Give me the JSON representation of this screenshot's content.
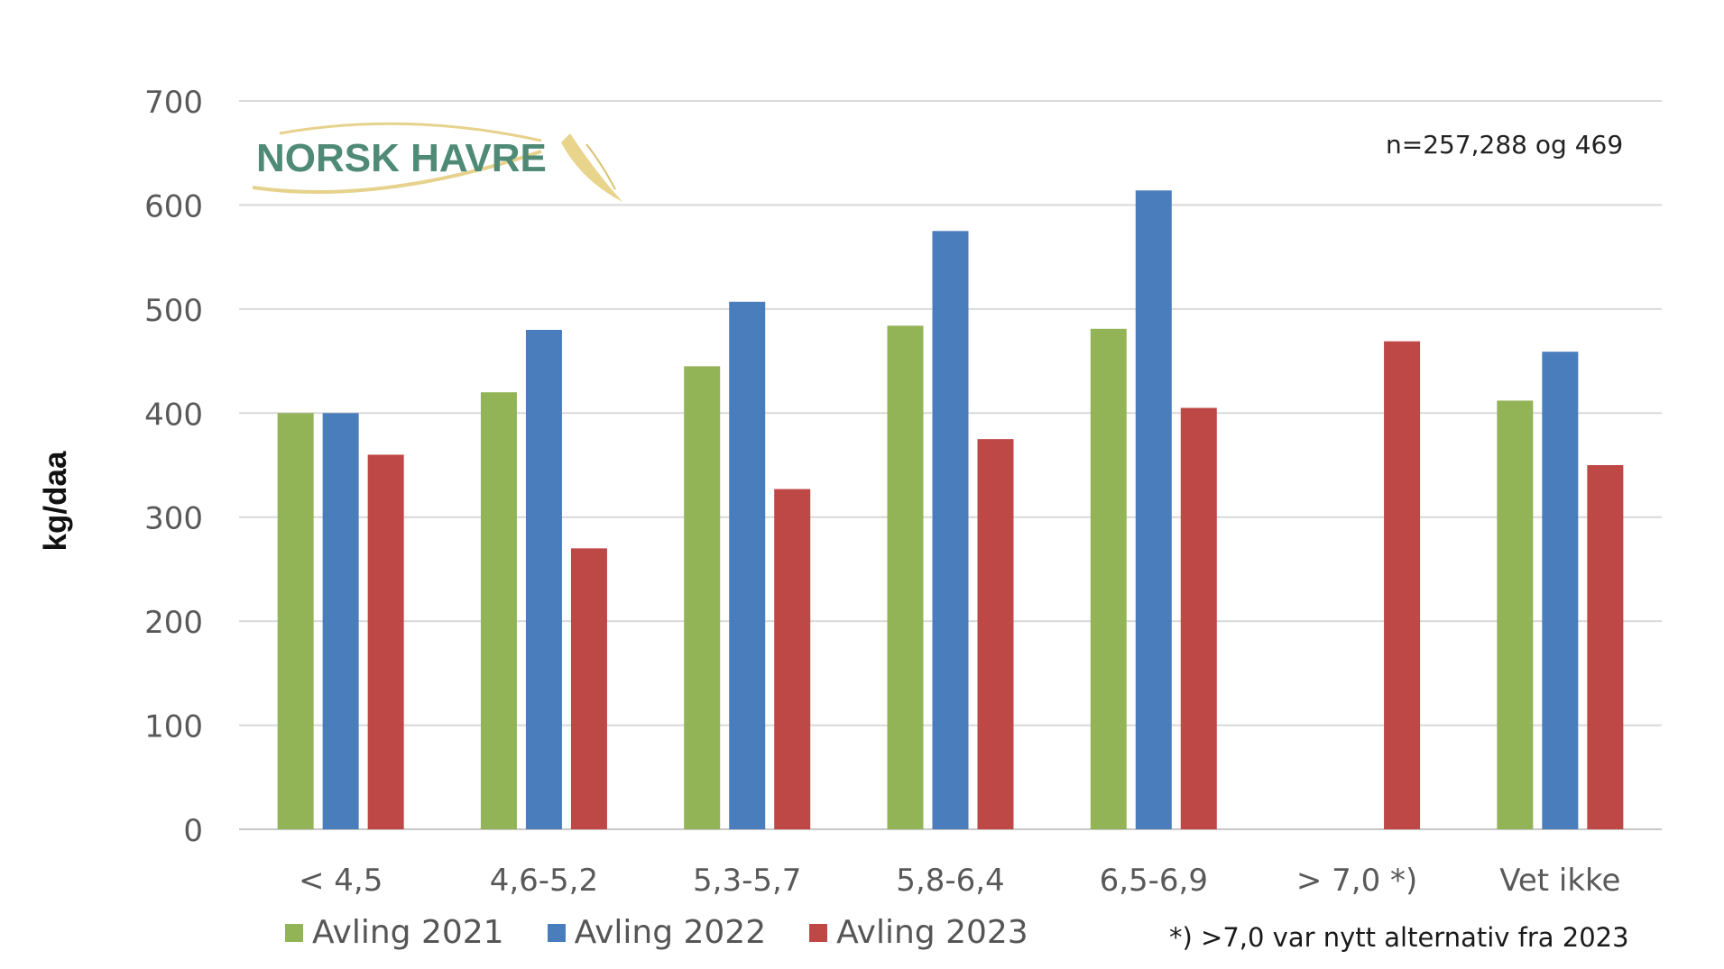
{
  "chart_data": {
    "type": "bar",
    "ylabel": "kg/daa",
    "ylim": [
      0,
      700
    ],
    "yticks": [
      "0",
      "100",
      "200",
      "300",
      "400",
      "500",
      "600",
      "700"
    ],
    "categories": [
      "< 4,5",
      "4,6-5,2",
      "5,3-5,7",
      "5,8-6,4",
      "6,5-6,9",
      "> 7,0 *)",
      "Vet ikke"
    ],
    "series": [
      {
        "name": "Avling 2021",
        "color": "#92b456",
        "values": [
          400,
          420,
          445,
          484,
          481,
          null,
          412
        ]
      },
      {
        "name": "Avling 2022",
        "color": "#4a7dbb",
        "values": [
          400,
          480,
          507,
          575,
          614,
          null,
          459
        ]
      },
      {
        "name": "Avling 2023",
        "color": "#bd4845",
        "values": [
          360,
          270,
          327,
          375,
          405,
          469,
          350
        ]
      }
    ],
    "grid": true,
    "legend_position": "bottom-left"
  },
  "annotations": {
    "n_text": "n=257,288 og 469",
    "footnote": "*) >7,0 var nytt alternativ fra 2023"
  },
  "logo": {
    "text": "NORSK HAVRE",
    "text_color": "#4e8a76",
    "swoosh_color": "#e6d28c"
  }
}
